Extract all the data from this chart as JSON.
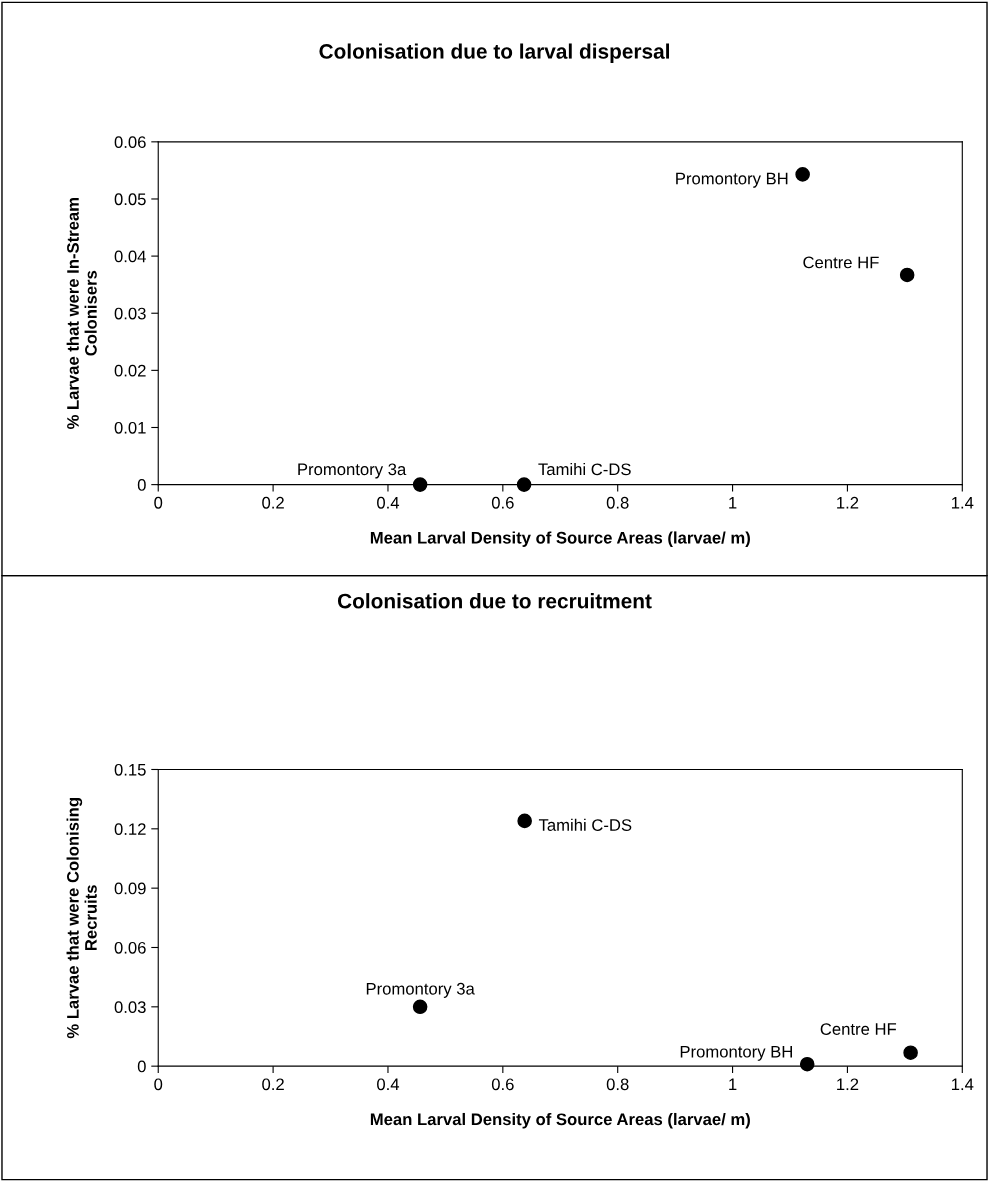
{
  "chart_data": [
    {
      "type": "scatter",
      "title": "Colonisation due to larval dispersal",
      "xlabel": "Mean Larval Density of Source Areas (larvae/ m)",
      "ylabel": "% Larvae that were In-Stream\nColonisers",
      "series": [
        {
          "color": "#000000",
          "x": [
            0.456,
            0.637,
            1.122,
            1.304
          ],
          "values": [
            0,
            0,
            0.0543,
            0.0367
          ]
        }
      ],
      "annotations": [
        {
          "text": "Promontory 3a",
          "x": 0.456,
          "y": 0
        },
        {
          "text": "Tamihi C-DS",
          "x": 0.637,
          "y": 0
        },
        {
          "text": "Promontory BH",
          "x": 1.122,
          "y": 0.0543
        },
        {
          "text": "Centre HF",
          "x": 1.304,
          "y": 0.0367
        }
      ],
      "xlim": [
        0,
        1.4
      ],
      "xticks": [
        0,
        0.2,
        0.4,
        0.6,
        0.8,
        1,
        1.2,
        1.4
      ],
      "ylim": [
        0,
        0.06
      ],
      "yticks": [
        0,
        0.01,
        0.02,
        0.03,
        0.04,
        0.05,
        0.06
      ],
      "marker": "circle",
      "grid": false
    },
    {
      "type": "scatter",
      "title": "Colonisation due to recruitment",
      "xlabel": "Mean Larval Density of Source Areas (larvae/ m)",
      "ylabel": "% Larvae that were Colonising\nRecruits",
      "series": [
        {
          "color": "#000000",
          "x": [
            0.456,
            0.638,
            1.13,
            1.31
          ],
          "values": [
            0.03,
            0.124,
            0.001,
            0.0068
          ]
        }
      ],
      "annotations": [
        {
          "text": "Promontory 3a",
          "x": 0.456,
          "y": 0.03
        },
        {
          "text": "Tamihi C-DS",
          "x": 0.638,
          "y": 0.124
        },
        {
          "text": "Promontory BH",
          "x": 1.13,
          "y": 0.001
        },
        {
          "text": "Centre HF",
          "x": 1.31,
          "y": 0.0068
        }
      ],
      "xlim": [
        0,
        1.4
      ],
      "xticks": [
        0,
        0.2,
        0.4,
        0.6,
        0.8,
        1,
        1.2,
        1.4
      ],
      "ylim": [
        0,
        0.15
      ],
      "yticks": [
        0,
        0.03,
        0.06,
        0.09,
        0.12,
        0.15
      ],
      "marker": "circle",
      "grid": false
    }
  ]
}
